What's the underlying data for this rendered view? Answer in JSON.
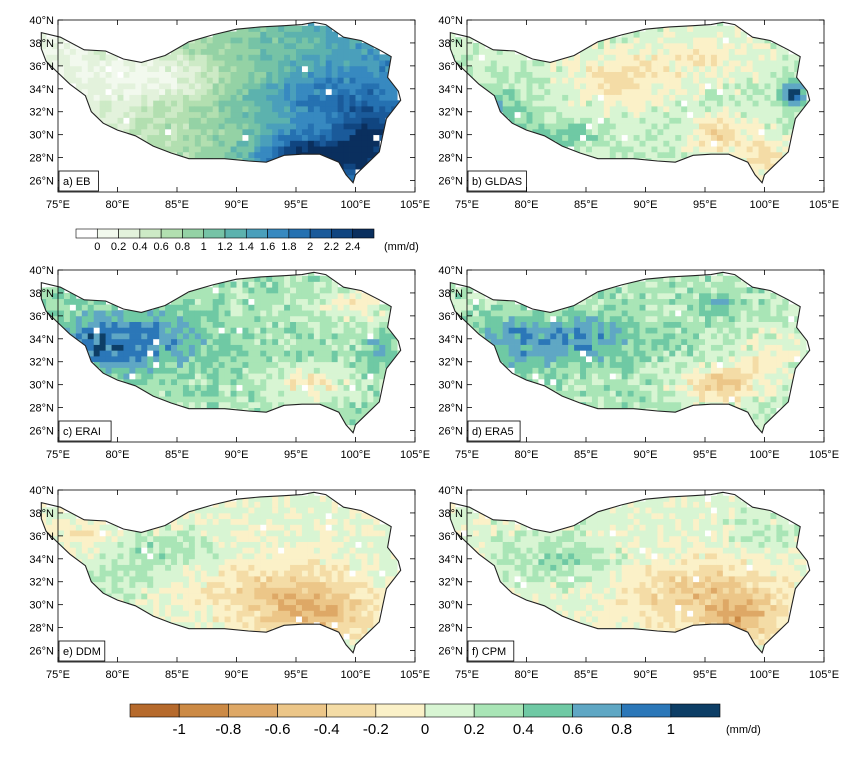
{
  "panels": [
    {
      "id": "a",
      "label": "a) EB",
      "theme": "eb"
    },
    {
      "id": "b",
      "label": "b) GLDAS",
      "theme": "gldas"
    },
    {
      "id": "c",
      "label": "c) ERAI",
      "theme": "erai"
    },
    {
      "id": "d",
      "label": "d) ERA5",
      "theme": "era5"
    },
    {
      "id": "e",
      "label": "e) DDM",
      "theme": "ddm"
    },
    {
      "id": "f",
      "label": "f) CPM",
      "theme": "cpm"
    }
  ],
  "axes": {
    "lon_min": 75,
    "lon_max": 105,
    "lat_min": 25,
    "lat_max": 40,
    "x_ticks": [
      "75°E",
      "80°E",
      "85°E",
      "90°E",
      "95°E",
      "100°E",
      "105°E"
    ],
    "y_ticks": [
      "26°N",
      "28°N",
      "30°N",
      "32°N",
      "34°N",
      "36°N",
      "38°N",
      "40°N"
    ]
  },
  "colorbar_top": {
    "labels": [
      "0",
      "0.2",
      "0.4",
      "0.6",
      "0.8",
      "1",
      "1.2",
      "1.4",
      "1.6",
      "1.8",
      "2",
      "2.2",
      "2.4"
    ],
    "unit": "(mm/d)",
    "colors": [
      "#ffffff",
      "#f2f9ee",
      "#e3f2dc",
      "#cdeac6",
      "#b2dfb0",
      "#94d2a5",
      "#76c3a6",
      "#5cb2ae",
      "#4a9fbb",
      "#3789c0",
      "#2571b1",
      "#1a5a9a",
      "#104580",
      "#0a2f5e"
    ]
  },
  "colorbar_bottom": {
    "labels": [
      "-1",
      "-0.8",
      "-0.6",
      "-0.4",
      "-0.2",
      "0",
      "0.2",
      "0.4",
      "0.6",
      "0.8",
      "1"
    ],
    "unit": "(mm/d)",
    "colors": [
      "#b66a2c",
      "#cc8a45",
      "#dea866",
      "#ecc688",
      "#f4dca6",
      "#fbf1c8",
      "#d8f5d3",
      "#a9e5b6",
      "#6fc9a4",
      "#5fa7c4",
      "#2b77b8",
      "#0d3e66"
    ]
  }
}
